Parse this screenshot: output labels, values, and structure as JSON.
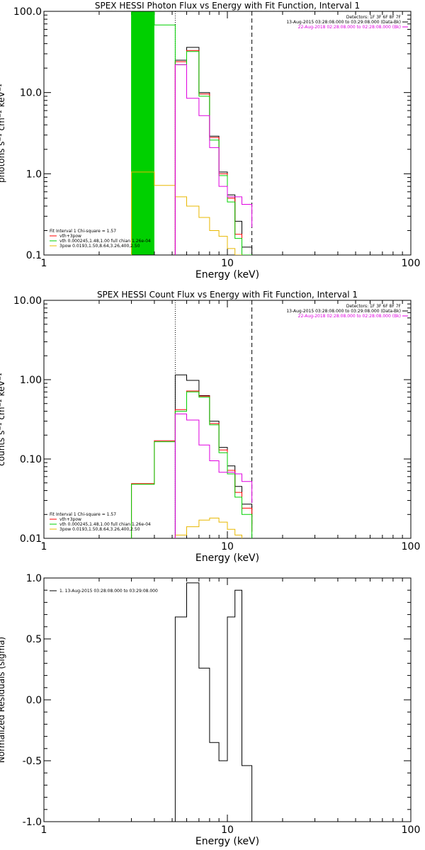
{
  "chart_data": [
    {
      "type": "line",
      "subtype": "step",
      "title": "SPEX HESSI Photon Flux vs Energy with Fit Function, Interval 1",
      "xlabel": "Energy (keV)",
      "ylabel": "photons s⁻¹ cm⁻² keV⁻¹",
      "xscale": "log",
      "yscale": "log",
      "xlim": [
        1,
        100
      ],
      "ylim": [
        0.1,
        100
      ],
      "xticks": [
        {
          "value": 1,
          "label": "1"
        },
        {
          "value": 10,
          "label": "10"
        },
        {
          "value": 100,
          "label": "100"
        }
      ],
      "yticks": [
        {
          "value": 0.1,
          "label": "0.1"
        },
        {
          "value": 1,
          "label": "1.0"
        },
        {
          "value": 10,
          "label": "10.0"
        },
        {
          "value": 100,
          "label": "100.0"
        }
      ],
      "vlines": [
        {
          "x": 5.2,
          "style": "dotted"
        },
        {
          "x": 13.6,
          "style": "dashed"
        }
      ],
      "annotations": {
        "top_right": [
          {
            "text": "Detectors: 1F 3F 6F 8F 7F",
            "color": "#000000"
          },
          {
            "text": "13-Aug-2015 03:28:08.000 to 03:29:08.000 (Data-Bk)",
            "color": "#000000"
          },
          {
            "text": "22-Aug-2018 02:28:08.000 to 02:28:08.000 (Bk)",
            "color": "#e000e0"
          }
        ]
      },
      "legend": {
        "position": "bottom-left",
        "header": "Fit Interval  1     Chi-square = 1.57",
        "entries": [
          {
            "label": "vth+3pow",
            "color": "#ff0000"
          },
          {
            "label": "vth 0.000245,1.48,1.00   full chian 1.26e-04",
            "color": "#00d000"
          },
          {
            "label": "3pow 0.0193,1.50,8.64,3.26,400,2.50",
            "color": "#e8b800"
          }
        ]
      },
      "edges": [
        3.0,
        4.0,
        5.2,
        6.0,
        7.0,
        8.0,
        9.0,
        10.0,
        11.0,
        12.0,
        13.6
      ],
      "series": [
        {
          "name": "Data-Bk",
          "color": "#000000",
          "values": [
            null,
            null,
            25.0,
            36.0,
            10.0,
            2.9,
            1.05,
            0.55,
            0.26,
            0.125,
            null
          ]
        },
        {
          "name": "vth+3pow",
          "color": "#ff0000",
          "values": [
            null,
            null,
            24.0,
            33.0,
            9.6,
            2.8,
            1.0,
            0.5,
            0.18,
            0.1,
            null
          ]
        },
        {
          "name": "vth",
          "color": "#00d000",
          "values": [
            150.0,
            68.0,
            22.0,
            32.0,
            9.0,
            2.6,
            0.95,
            0.45,
            0.16,
            0.1,
            null
          ]
        },
        {
          "name": "3pow",
          "color": "#e8b800",
          "values": [
            1.05,
            0.72,
            0.52,
            0.4,
            0.29,
            0.2,
            0.17,
            0.12,
            0.1,
            null,
            null
          ]
        },
        {
          "name": "Bk",
          "color": "#e000e0",
          "values": [
            null,
            null,
            22.0,
            8.5,
            5.2,
            2.1,
            0.7,
            0.52,
            0.52,
            0.42,
            0.22
          ]
        }
      ],
      "fill": {
        "color": "#00d000",
        "from": 3.0,
        "to": 4.0
      }
    },
    {
      "type": "line",
      "subtype": "step",
      "title": "SPEX HESSI Count Flux vs Energy with Fit Function, Interval 1",
      "xlabel": "Energy (keV)",
      "ylabel": "counts s⁻¹ cm⁻² keV⁻¹",
      "xscale": "log",
      "yscale": "log",
      "xlim": [
        1,
        100
      ],
      "ylim": [
        0.01,
        10
      ],
      "xticks": [
        {
          "value": 1,
          "label": "1"
        },
        {
          "value": 10,
          "label": "10"
        },
        {
          "value": 100,
          "label": "100"
        }
      ],
      "yticks": [
        {
          "value": 0.01,
          "label": "0.01"
        },
        {
          "value": 0.1,
          "label": "0.10"
        },
        {
          "value": 1,
          "label": "1.00"
        },
        {
          "value": 10,
          "label": "10.00"
        }
      ],
      "vlines": [
        {
          "x": 5.2,
          "style": "dotted"
        },
        {
          "x": 13.6,
          "style": "dashed"
        }
      ],
      "annotations": {
        "top_right": [
          {
            "text": "Detectors: 1F 3F 6F 8F 7F",
            "color": "#000000"
          },
          {
            "text": "13-Aug-2015 03:28:08.000 to 03:29:08.000 (Data-Bk)",
            "color": "#000000"
          },
          {
            "text": "22-Aug-2018 02:28:08.000 to 02:28:08.000 (Bk)",
            "color": "#e000e0"
          }
        ]
      },
      "legend": {
        "position": "bottom-left",
        "header": "Fit Interval  1     Chi-square = 1.57",
        "entries": [
          {
            "label": "vth+3pow",
            "color": "#ff0000"
          },
          {
            "label": "vth 0.000245,1.48,1.00   full chian 1.26e-04",
            "color": "#00d000"
          },
          {
            "label": "3pow 0.0193,1.50,8.64,3.26,400,2.50",
            "color": "#e8b800"
          }
        ]
      },
      "edges": [
        3.0,
        4.0,
        5.2,
        6.0,
        7.0,
        8.0,
        9.0,
        10.0,
        11.0,
        12.0,
        13.6
      ],
      "series": [
        {
          "name": "Data-Bk",
          "color": "#000000",
          "values": [
            null,
            null,
            1.15,
            0.98,
            0.63,
            0.3,
            0.14,
            0.082,
            0.045,
            0.027,
            0.014
          ]
        },
        {
          "name": "vth+3pow",
          "color": "#ff0000",
          "values": [
            0.049,
            0.17,
            0.42,
            0.72,
            0.62,
            0.28,
            0.13,
            0.072,
            0.038,
            0.024,
            0.012
          ]
        },
        {
          "name": "vth",
          "color": "#00d000",
          "values": [
            0.048,
            0.165,
            0.4,
            0.7,
            0.6,
            0.27,
            0.12,
            0.065,
            0.033,
            0.02,
            0.01
          ]
        },
        {
          "name": "3pow",
          "color": "#e8b800",
          "values": [
            null,
            null,
            0.011,
            0.014,
            0.017,
            0.018,
            0.016,
            0.013,
            0.011,
            null,
            null
          ]
        },
        {
          "name": "Bk",
          "color": "#e000e0",
          "values": [
            null,
            null,
            0.37,
            0.31,
            0.15,
            0.095,
            0.068,
            0.068,
            0.065,
            0.052,
            0.028
          ]
        }
      ]
    },
    {
      "type": "line",
      "subtype": "step",
      "title": "",
      "xlabel": "Energy (keV)",
      "ylabel": "Normalized Residuals (sigma)",
      "xscale": "log",
      "yscale": "linear",
      "xlim": [
        1,
        100
      ],
      "ylim": [
        -1.0,
        1.0
      ],
      "xticks": [
        {
          "value": 1,
          "label": "1"
        },
        {
          "value": 10,
          "label": "10"
        },
        {
          "value": 100,
          "label": "100"
        }
      ],
      "yticks": [
        {
          "value": -1.0,
          "label": "-1.0"
        },
        {
          "value": -0.5,
          "label": "-0.5"
        },
        {
          "value": 0.0,
          "label": "0.0"
        },
        {
          "value": 0.5,
          "label": "0.5"
        },
        {
          "value": 1.0,
          "label": "1.0"
        }
      ],
      "legend": {
        "position": "top-left",
        "entries": [
          {
            "label": "1. 13-Aug-2015 03:28:08.000 to 03:29:08.000",
            "color": "#000000"
          }
        ]
      },
      "edges": [
        5.2,
        6.0,
        7.0,
        8.0,
        9.0,
        10.0,
        11.0,
        12.0,
        13.6
      ],
      "series": [
        {
          "name": "",
          "color": "#000000",
          "values": [
            0.68,
            0.96,
            0.26,
            -0.35,
            -0.5,
            0.68,
            0.9,
            -0.54
          ]
        }
      ]
    }
  ]
}
